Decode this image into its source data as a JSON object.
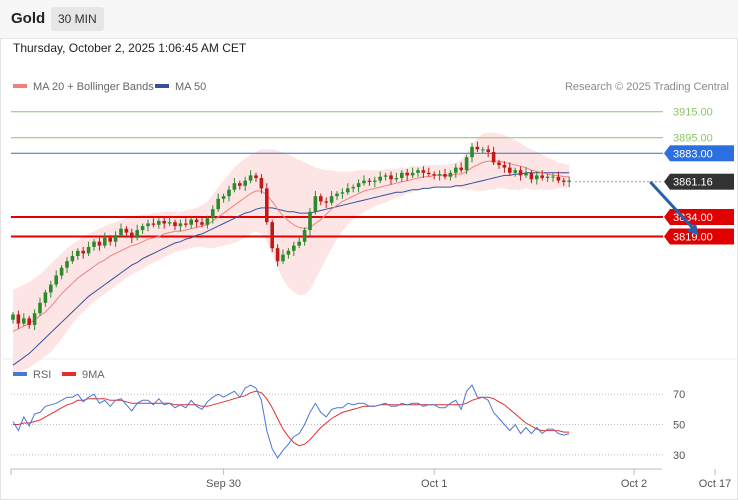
{
  "header": {
    "symbol": "Gold",
    "timeframe": "30 MIN",
    "datetime": "Thursday, October 2, 2025 1:06:45 AM CET"
  },
  "legend": {
    "ma20_label": "MA 20 + Bollinger Bands",
    "ma50_label": "MA 50",
    "credit": "Research © 2025 Trading Central"
  },
  "rsi_legend": {
    "rsi_label": "RSI",
    "ma_label": "9MA"
  },
  "colors": {
    "bullish": "#2c8a2c",
    "bearish": "#c21818",
    "ma20": "#f08080",
    "bollinger_fill": "#fde0e0",
    "ma50": "#34509a",
    "resistance": "#8ec46a",
    "pivot": "#2c6fe0",
    "support": "#e00000",
    "last": "#333333",
    "arrow": "#2a5fa8",
    "rsi": "#4a76d6",
    "rsi_ma": "#e03030"
  },
  "chart_data": [
    {
      "type": "line",
      "title": "Gold",
      "subtitle": "30 MIN",
      "y_range": [
        3724,
        3924
      ],
      "x_ticks": [
        {
          "label": "Sep 30",
          "index": 39
        },
        {
          "label": "Oct 1",
          "index": 78
        },
        {
          "label": "Oct 2",
          "index": 115
        },
        {
          "label": "Oct 17",
          "index": 130
        }
      ],
      "levels": [
        {
          "label": "3915.00",
          "value": 3915,
          "type": "resistance"
        },
        {
          "label": "3895.00",
          "value": 3895,
          "type": "resistance"
        },
        {
          "label": "3883.00",
          "value": 3883,
          "type": "pivot"
        },
        {
          "label": "3861.16",
          "value": 3861.16,
          "type": "last"
        },
        {
          "label": "3834.00",
          "value": 3834,
          "type": "support"
        },
        {
          "label": "3819.00",
          "value": 3819,
          "type": "support"
        }
      ],
      "forecast_arrow": {
        "from": {
          "index": 118,
          "value": 3861
        },
        "to": {
          "index": 127,
          "value": 3820
        }
      },
      "close": [
        3759,
        3752,
        3756,
        3751,
        3760,
        3768,
        3776,
        3782,
        3789,
        3795,
        3800,
        3804,
        3808,
        3806,
        3811,
        3815,
        3812,
        3818,
        3815,
        3820,
        3825,
        3822,
        3818,
        3824,
        3827,
        3829,
        3828,
        3831,
        3829,
        3830,
        3827,
        3829,
        3828,
        3832,
        3830,
        3828,
        3833,
        3840,
        3848,
        3850,
        3855,
        3860,
        3858,
        3862,
        3866,
        3864,
        3856,
        3830,
        3810,
        3800,
        3805,
        3808,
        3812,
        3815,
        3824,
        3838,
        3850,
        3846,
        3845,
        3850,
        3852,
        3853,
        3856,
        3857,
        3860,
        3862,
        3861,
        3862,
        3865,
        3866,
        3863,
        3864,
        3868,
        3866,
        3868,
        3870,
        3868,
        3867,
        3866,
        3867,
        3865,
        3868,
        3872,
        3870,
        3880,
        3888,
        3886,
        3886,
        3884,
        3876,
        3874,
        3872,
        3868,
        3870,
        3866,
        3868,
        3863,
        3866,
        3864,
        3865,
        3865,
        3862,
        3861,
        3862
      ],
      "ma20": [
        3746,
        3748,
        3750,
        3752,
        3755,
        3758,
        3761,
        3765,
        3770,
        3775,
        3779,
        3783,
        3787,
        3790,
        3793,
        3796,
        3799,
        3801,
        3804,
        3806,
        3808,
        3810,
        3812,
        3813,
        3815,
        3817,
        3818,
        3819,
        3821,
        3822,
        3823,
        3823,
        3824,
        3825,
        3826,
        3827,
        3828,
        3831,
        3834,
        3837,
        3840,
        3843,
        3846,
        3849,
        3852,
        3854,
        3854,
        3851,
        3846,
        3840,
        3835,
        3831,
        3828,
        3826,
        3825,
        3826,
        3829,
        3832,
        3836,
        3840,
        3843,
        3846,
        3848,
        3850,
        3852,
        3854,
        3855,
        3856,
        3857,
        3858,
        3859,
        3860,
        3861,
        3862,
        3863,
        3864,
        3865,
        3865,
        3866,
        3866,
        3866,
        3866,
        3867,
        3867,
        3869,
        3872,
        3874,
        3876,
        3877,
        3877,
        3877,
        3876,
        3875,
        3874,
        3873,
        3872,
        3870,
        3869,
        3868,
        3867,
        3866,
        3866,
        3865,
        3865
      ],
      "bb_upper": [
        3778,
        3780,
        3782,
        3784,
        3787,
        3790,
        3794,
        3798,
        3802,
        3806,
        3810,
        3813,
        3816,
        3819,
        3821,
        3823,
        3825,
        3827,
        3829,
        3830,
        3832,
        3833,
        3834,
        3835,
        3836,
        3836,
        3837,
        3837,
        3838,
        3838,
        3838,
        3838,
        3839,
        3840,
        3841,
        3843,
        3846,
        3851,
        3857,
        3862,
        3867,
        3872,
        3876,
        3879,
        3882,
        3884,
        3886,
        3886,
        3886,
        3885,
        3884,
        3882,
        3880,
        3878,
        3876,
        3874,
        3872,
        3871,
        3870,
        3870,
        3869,
        3869,
        3869,
        3869,
        3870,
        3870,
        3870,
        3870,
        3870,
        3871,
        3871,
        3871,
        3872,
        3872,
        3873,
        3873,
        3874,
        3874,
        3874,
        3874,
        3874,
        3875,
        3876,
        3878,
        3883,
        3889,
        3895,
        3898,
        3899,
        3899,
        3898,
        3897,
        3895,
        3893,
        3891,
        3888,
        3886,
        3884,
        3882,
        3880,
        3878,
        3876,
        3875,
        3874
      ],
      "bb_lower": [
        3712,
        3714,
        3716,
        3718,
        3721,
        3724,
        3727,
        3730,
        3735,
        3740,
        3746,
        3752,
        3757,
        3761,
        3765,
        3769,
        3772,
        3775,
        3778,
        3781,
        3784,
        3787,
        3790,
        3792,
        3794,
        3797,
        3799,
        3801,
        3803,
        3805,
        3807,
        3808,
        3809,
        3810,
        3811,
        3811,
        3810,
        3810,
        3811,
        3812,
        3813,
        3814,
        3816,
        3818,
        3821,
        3823,
        3821,
        3815,
        3805,
        3795,
        3786,
        3780,
        3776,
        3774,
        3774,
        3778,
        3786,
        3794,
        3802,
        3810,
        3817,
        3823,
        3828,
        3832,
        3835,
        3838,
        3840,
        3842,
        3844,
        3845,
        3847,
        3849,
        3850,
        3852,
        3853,
        3855,
        3856,
        3856,
        3857,
        3857,
        3857,
        3857,
        3857,
        3856,
        3855,
        3855,
        3854,
        3854,
        3855,
        3855,
        3856,
        3856,
        3855,
        3855,
        3855,
        3856,
        3855,
        3855,
        3855,
        3855,
        3855,
        3856,
        3856,
        3857
      ],
      "ma50": [
        3720,
        3723,
        3726,
        3729,
        3733,
        3737,
        3741,
        3745,
        3749,
        3753,
        3757,
        3761,
        3765,
        3769,
        3773,
        3776,
        3779,
        3782,
        3785,
        3788,
        3791,
        3794,
        3797,
        3799,
        3802,
        3804,
        3806,
        3808,
        3810,
        3812,
        3814,
        3815,
        3817,
        3818,
        3820,
        3821,
        3823,
        3825,
        3827,
        3829,
        3831,
        3833,
        3835,
        3837,
        3838,
        3840,
        3841,
        3841,
        3841,
        3840,
        3839,
        3838,
        3838,
        3837,
        3837,
        3837,
        3838,
        3839,
        3840,
        3841,
        3842,
        3843,
        3844,
        3845,
        3846,
        3847,
        3848,
        3849,
        3850,
        3851,
        3852,
        3853,
        3853,
        3854,
        3855,
        3855,
        3856,
        3856,
        3857,
        3857,
        3857,
        3857,
        3858,
        3858,
        3859,
        3860,
        3861,
        3862,
        3863,
        3864,
        3865,
        3866,
        3866,
        3867,
        3867,
        3868,
        3868,
        3868,
        3868,
        3868,
        3868,
        3868,
        3868,
        3868
      ]
    },
    {
      "type": "line",
      "y_range": [
        20,
        82
      ],
      "y_ticks": [
        30,
        50,
        70
      ],
      "dotted_levels": [
        30,
        50,
        70
      ],
      "rsi": [
        52,
        46,
        55,
        49,
        57,
        58,
        62,
        63,
        64,
        66,
        68,
        68,
        70,
        65,
        68,
        70,
        64,
        66,
        62,
        66,
        67,
        63,
        59,
        64,
        66,
        66,
        63,
        67,
        63,
        64,
        61,
        63,
        61,
        66,
        62,
        60,
        65,
        68,
        70,
        68,
        70,
        72,
        68,
        74,
        76,
        74,
        66,
        46,
        34,
        28,
        33,
        37,
        42,
        44,
        50,
        58,
        64,
        58,
        55,
        60,
        61,
        61,
        64,
        63,
        64,
        64,
        62,
        62,
        63,
        64,
        62,
        62,
        64,
        63,
        64,
        64,
        62,
        63,
        63,
        61,
        61,
        64,
        66,
        60,
        72,
        76,
        68,
        68,
        66,
        58,
        54,
        50,
        46,
        50,
        44,
        48,
        44,
        48,
        44,
        47,
        47,
        44,
        43,
        44
      ],
      "rsi_ma": [
        50,
        50,
        51,
        51,
        52,
        53,
        55,
        57,
        59,
        61,
        63,
        64,
        66,
        66,
        67,
        67,
        67,
        67,
        66,
        66,
        66,
        65,
        64,
        64,
        64,
        64,
        64,
        64,
        64,
        64,
        63,
        63,
        63,
        63,
        63,
        62,
        62,
        63,
        64,
        65,
        66,
        67,
        68,
        69,
        71,
        72,
        71,
        67,
        61,
        54,
        47,
        42,
        38,
        36,
        37,
        40,
        44,
        48,
        51,
        54,
        56,
        58,
        59,
        60,
        61,
        62,
        62,
        62,
        63,
        63,
        63,
        63,
        63,
        63,
        63,
        63,
        63,
        63,
        63,
        63,
        63,
        63,
        63,
        63,
        64,
        66,
        67,
        68,
        68,
        67,
        65,
        63,
        60,
        57,
        54,
        51,
        49,
        47,
        46,
        46,
        46,
        46,
        45,
        45
      ]
    }
  ]
}
